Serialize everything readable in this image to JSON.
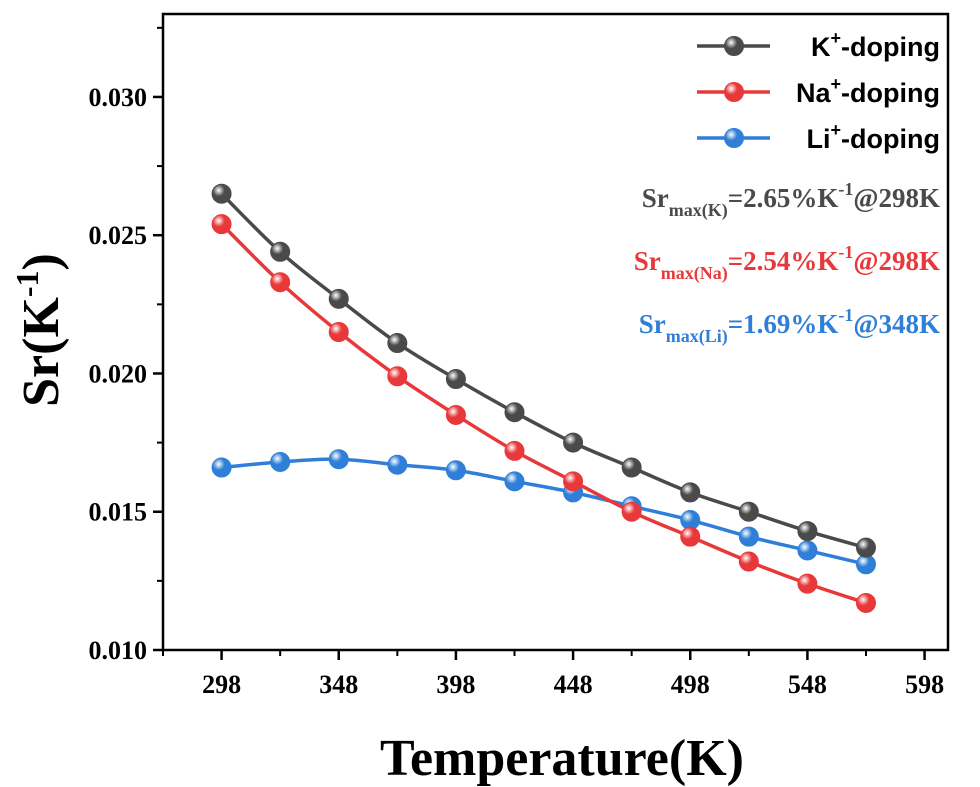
{
  "chart_data": {
    "type": "line",
    "xlabel": "Temperature(K)",
    "ylabel_main": "Sr(K",
    "ylabel_sup": "-1",
    "ylabel_close": ")",
    "xlim": [
      273,
      608
    ],
    "ylim": [
      0.01,
      0.033
    ],
    "xticks": [
      298,
      348,
      398,
      448,
      498,
      548,
      598
    ],
    "yticks": [
      "0.010",
      "0.015",
      "0.020",
      "0.025",
      "0.030"
    ],
    "x": [
      298,
      323,
      348,
      373,
      398,
      423,
      448,
      473,
      498,
      523,
      548,
      573
    ],
    "series": [
      {
        "name": "K",
        "name_sup": "+",
        "name_suffix": "-doping",
        "color": "#4a4a4a",
        "values": [
          0.0265,
          0.0244,
          0.0227,
          0.0211,
          0.0198,
          0.0186,
          0.0175,
          0.0166,
          0.0157,
          0.015,
          0.0143,
          0.0137
        ]
      },
      {
        "name": "Na",
        "name_sup": "+",
        "name_suffix": "-doping",
        "color": "#e8383a",
        "values": [
          0.0254,
          0.0233,
          0.0215,
          0.0199,
          0.0185,
          0.0172,
          0.0161,
          0.015,
          0.0141,
          0.0132,
          0.0124,
          0.0117
        ]
      },
      {
        "name": "Li",
        "name_sup": "+",
        "name_suffix": "-doping",
        "color": "#2f7fd8",
        "values": [
          0.0166,
          0.0168,
          0.0169,
          0.0167,
          0.0165,
          0.0161,
          0.0157,
          0.0152,
          0.0147,
          0.0141,
          0.0136,
          0.0131
        ]
      }
    ],
    "legend_position": "top-right",
    "annotations": [
      {
        "base": "Sr",
        "sub": "max(K)",
        "rest": "=2.65%K",
        "sup": "-1",
        "tail": "@298K",
        "color": "#4a4a4a"
      },
      {
        "base": "Sr",
        "sub": "max(Na)",
        "rest": "=2.54%K",
        "sup": "-1",
        "tail": "@298K",
        "color": "#e8383a"
      },
      {
        "base": "Sr",
        "sub": "max(Li)",
        "rest": "=1.69%K",
        "sup": "-1",
        "tail": "@348K",
        "color": "#2f7fd8"
      }
    ],
    "grid": false
  }
}
